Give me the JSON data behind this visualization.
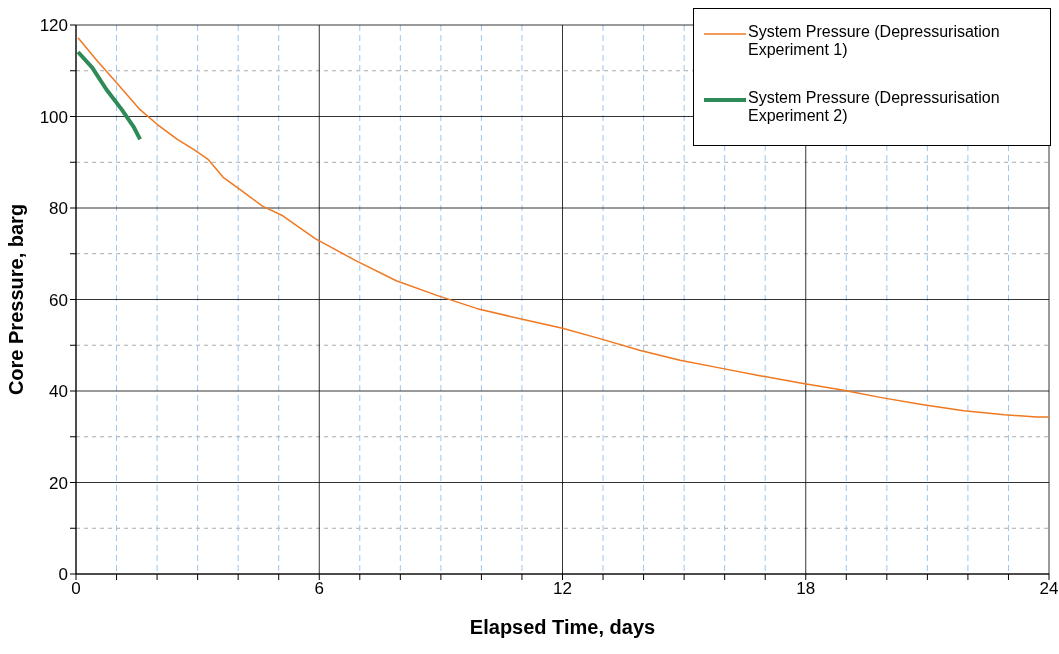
{
  "chart_data": {
    "type": "line",
    "xlabel": "Elapsed Time, days",
    "ylabel": "Core Pressure, barg",
    "xlim": [
      0,
      24
    ],
    "ylim": [
      0,
      120
    ],
    "xticks": [
      0,
      {
        "value": 1,
        "label": null
      },
      {
        "value": 2,
        "label": null
      },
      {
        "value": 3,
        "label": null
      },
      {
        "value": 4,
        "label": null
      },
      {
        "value": 5,
        "label": null
      },
      6,
      {
        "value": 7,
        "label": null
      },
      {
        "value": 8,
        "label": null
      },
      {
        "value": 9,
        "label": null
      },
      {
        "value": 10,
        "label": null
      },
      {
        "value": 11,
        "label": null
      },
      12,
      {
        "value": 13,
        "label": null
      },
      {
        "value": 14,
        "label": null
      },
      {
        "value": 15,
        "label": null
      },
      {
        "value": 16,
        "label": null
      },
      {
        "value": 17,
        "label": null
      },
      18,
      {
        "value": 19,
        "label": null
      },
      {
        "value": 20,
        "label": null
      },
      {
        "value": 21,
        "label": null
      },
      {
        "value": 22,
        "label": null
      },
      {
        "value": 23,
        "label": null
      },
      24
    ],
    "yticks": [
      0,
      {
        "value": 10,
        "label": null
      },
      20,
      {
        "value": 30,
        "label": null
      },
      40,
      {
        "value": 50,
        "label": null
      },
      60,
      {
        "value": 70,
        "label": null
      },
      80,
      {
        "value": 90,
        "label": null
      },
      100,
      {
        "value": 110,
        "label": null
      },
      120
    ],
    "grid": true,
    "legend": "top right",
    "marker": "none",
    "line_style": "solid",
    "series": [
      {
        "name": "System Pressure (Depressurisation Experiment 1)",
        "color": "#f07820",
        "x": [
          0.05,
          0.5,
          1,
          1.58,
          2,
          2.5,
          2.9,
          3.25,
          3.63,
          4.1,
          4.6,
          5.1,
          5.9,
          6.9,
          7.9,
          8.9,
          9.9,
          10.9,
          12,
          12.9,
          13.9,
          14.9,
          15.9,
          16.9,
          17.9,
          18.9,
          19.9,
          20.9,
          21.9,
          22.9,
          23.7,
          24
        ],
        "values": [
          117.2,
          112.4,
          107.4,
          101.5,
          98.3,
          95,
          92.8,
          90.7,
          86.7,
          83.7,
          80.4,
          78.3,
          73.3,
          68.5,
          64.1,
          60.9,
          58,
          55.9,
          53.7,
          51.5,
          48.9,
          46.7,
          45,
          43.3,
          41.7,
          40.2,
          38.5,
          37,
          35.7,
          34.8,
          34.3,
          34.3
        ]
      },
      {
        "name": "System Pressure (Depressurisation Experiment 2)",
        "color": "#2e8b57",
        "x": [
          0.05,
          0.4,
          0.75,
          1.13,
          1.43,
          1.58
        ],
        "values": [
          114.1,
          110.7,
          105.9,
          101.5,
          97.6,
          95
        ]
      }
    ]
  }
}
